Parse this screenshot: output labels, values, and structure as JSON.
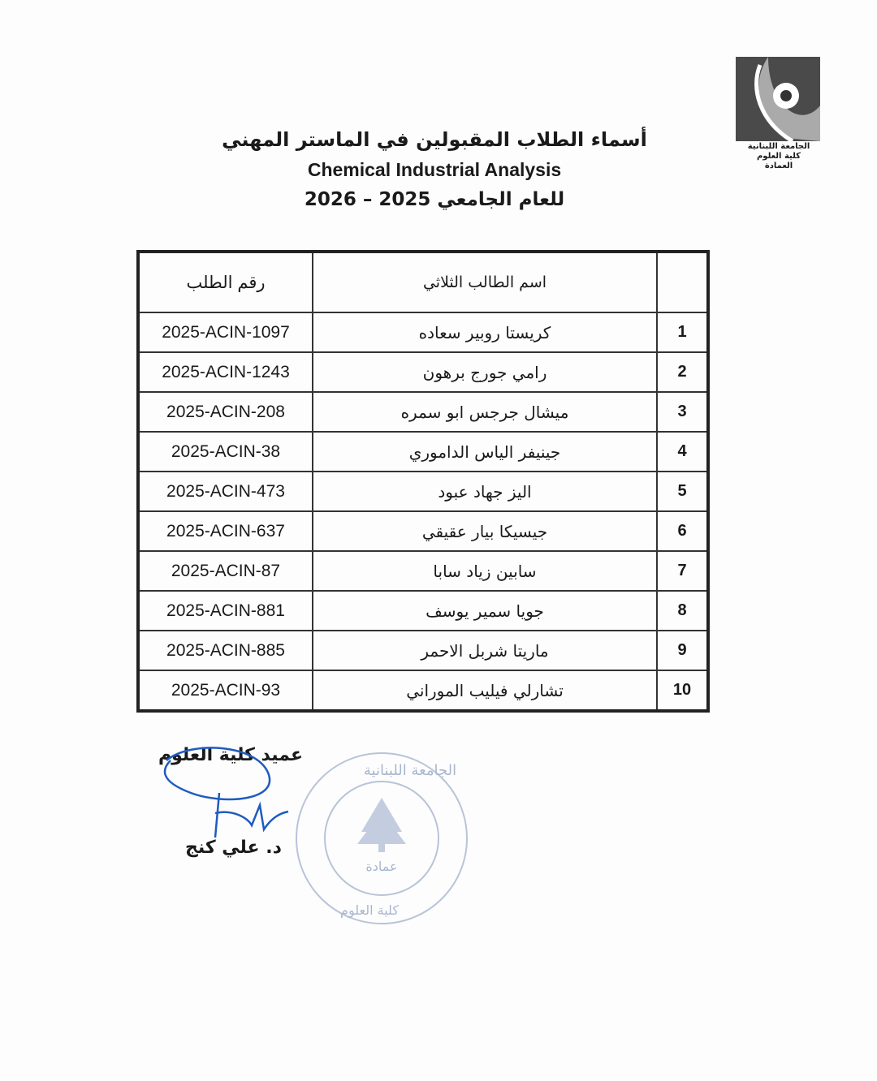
{
  "logo": {
    "caption": [
      "الجامعة اللبنانية",
      "كلية العلوم",
      "العمادة"
    ]
  },
  "header": {
    "title_ar": "أسماء الطلاب المقبولين في الماستر المهني",
    "program": "Chemical Industrial Analysis",
    "year_line": "للعام الجامعي 2025 – 2026"
  },
  "table": {
    "headers": {
      "id": "رقم الطلب",
      "name": "اسم الطالب الثلاثي",
      "num": ""
    },
    "rows": [
      {
        "num": "1",
        "name": "كريستا روبير سعاده",
        "id": "2025-ACIN-1097"
      },
      {
        "num": "2",
        "name": "رامي جورج برهون",
        "id": "2025-ACIN-1243"
      },
      {
        "num": "3",
        "name": "ميشال جرجس ابو سمره",
        "id": "2025-ACIN-208"
      },
      {
        "num": "4",
        "name": "جينيفر الياس الداموري",
        "id": "2025-ACIN-38"
      },
      {
        "num": "5",
        "name": "اليز جهاد عبود",
        "id": "2025-ACIN-473"
      },
      {
        "num": "6",
        "name": "جيسيكا بيار عقيقي",
        "id": "2025-ACIN-637"
      },
      {
        "num": "7",
        "name": "سابين زياد سابا",
        "id": "2025-ACIN-87"
      },
      {
        "num": "8",
        "name": "جويا سمير يوسف",
        "id": "2025-ACIN-881"
      },
      {
        "num": "9",
        "name": "ماريتا  شربل الاحمر",
        "id": "2025-ACIN-885"
      },
      {
        "num": "10",
        "name": "تشارلي فيليب الموراني",
        "id": "2025-ACIN-93"
      }
    ]
  },
  "signature": {
    "title": "عميد كلية العلوم",
    "name": "د. علي كنج"
  },
  "stamp": {
    "text_top": "الجامعة اللبنانية",
    "text_center": "عمادة",
    "text_bottom": "كلية العلوم",
    "color": "#b8c4d8"
  },
  "colors": {
    "signature_ink": "#1f5bbf"
  }
}
